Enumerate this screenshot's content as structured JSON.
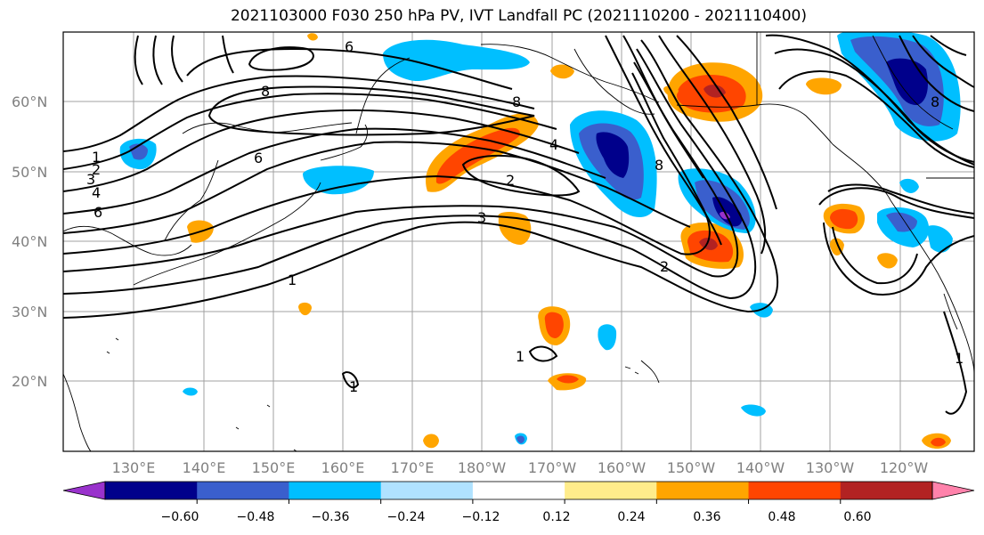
{
  "title": "2021103000 F030 250 hPa PV, IVT Landfall PC (2021110200 - 2021110400)",
  "map": {
    "lon_ticks": [
      "130°E",
      "140°E",
      "150°E",
      "160°E",
      "170°E",
      "180°W",
      "170°W",
      "160°W",
      "150°W",
      "140°W",
      "130°W",
      "120°W"
    ],
    "lat_ticks": [
      "60°N",
      "50°N",
      "40°N",
      "30°N",
      "20°N"
    ],
    "contour_labels": [
      "1",
      "2",
      "3",
      "4",
      "6",
      "8",
      "6",
      "8",
      "2",
      "3",
      "1",
      "2",
      "8",
      "4",
      "6",
      "8",
      "1",
      "1",
      "1"
    ]
  },
  "colorbar": {
    "ticks": [
      "−0.60",
      "−0.48",
      "−0.36",
      "−0.24",
      "−0.12",
      "0.12",
      "0.24",
      "0.36",
      "0.48",
      "0.60"
    ],
    "colors": [
      "#9932cc",
      "#00008b",
      "#3a5fcd",
      "#00bfff",
      "#b0e2ff",
      "#ffffff",
      "#ffec8b",
      "#ffa500",
      "#ff4500",
      "#b22222",
      "#ff82ab"
    ]
  }
}
